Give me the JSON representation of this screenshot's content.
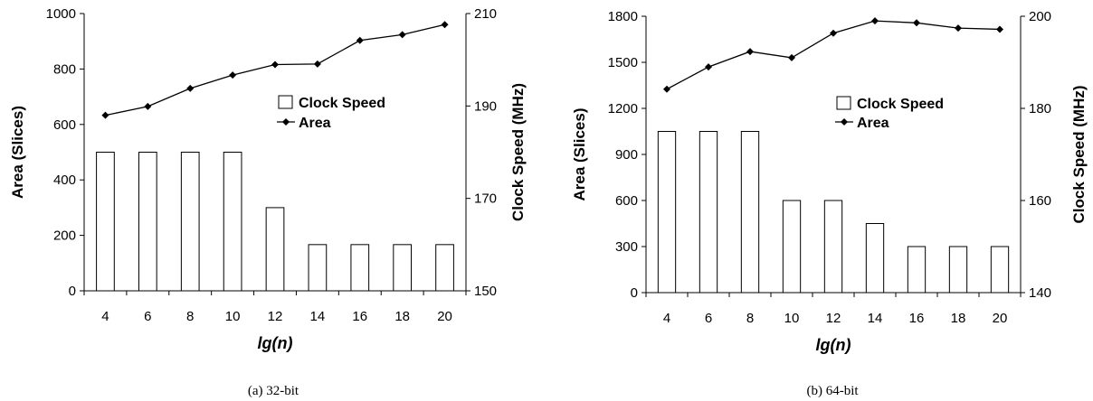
{
  "chart_data": [
    {
      "type": "bar+line",
      "caption": "(a) 32-bit",
      "xlabel": "lg(n)",
      "ylabel_left": "Area (Slices)",
      "ylabel_right": "Clock Speed (MHz)",
      "categories": [
        "4",
        "6",
        "8",
        "10",
        "12",
        "14",
        "16",
        "18",
        "20"
      ],
      "left_axis": {
        "min": 0,
        "max": 1000,
        "ticks": [
          "0",
          "200",
          "400",
          "600",
          "800",
          "1000"
        ]
      },
      "right_axis": {
        "min": 150,
        "max": 210,
        "ticks": [
          "150",
          "170",
          "190",
          "210"
        ]
      },
      "legend": {
        "placement": "center-right",
        "entries": [
          "Clock Speed",
          "Area"
        ]
      },
      "series": [
        {
          "name": "Clock Speed",
          "kind": "bar",
          "axis": "right",
          "values": [
            180,
            180,
            180,
            180,
            168,
            160,
            160,
            160,
            160
          ]
        },
        {
          "name": "Area",
          "kind": "line",
          "axis": "left",
          "values": [
            633,
            665,
            730,
            778,
            816,
            818,
            903,
            924,
            960
          ]
        }
      ]
    },
    {
      "type": "bar+line",
      "caption": "(b) 64-bit",
      "xlabel": "lg(n)",
      "ylabel_left": "Area (Slices)",
      "ylabel_right": "Clock Speed (MHz)",
      "categories": [
        "4",
        "6",
        "8",
        "10",
        "12",
        "14",
        "16",
        "18",
        "20"
      ],
      "left_axis": {
        "min": 0,
        "max": 1800,
        "ticks": [
          "0",
          "300",
          "600",
          "900",
          "1200",
          "1500",
          "1800"
        ]
      },
      "right_axis": {
        "min": 140,
        "max": 200,
        "ticks": [
          "140",
          "160",
          "180",
          "200"
        ]
      },
      "legend": {
        "placement": "center-right",
        "entries": [
          "Clock Speed",
          "Area"
        ]
      },
      "series": [
        {
          "name": "Clock Speed",
          "kind": "bar",
          "axis": "right",
          "values": [
            175,
            175,
            175,
            160,
            160,
            155,
            150,
            150,
            150
          ]
        },
        {
          "name": "Area",
          "kind": "line",
          "axis": "left",
          "values": [
            1325,
            1470,
            1570,
            1530,
            1690,
            1770,
            1757,
            1723,
            1715
          ]
        }
      ]
    }
  ]
}
